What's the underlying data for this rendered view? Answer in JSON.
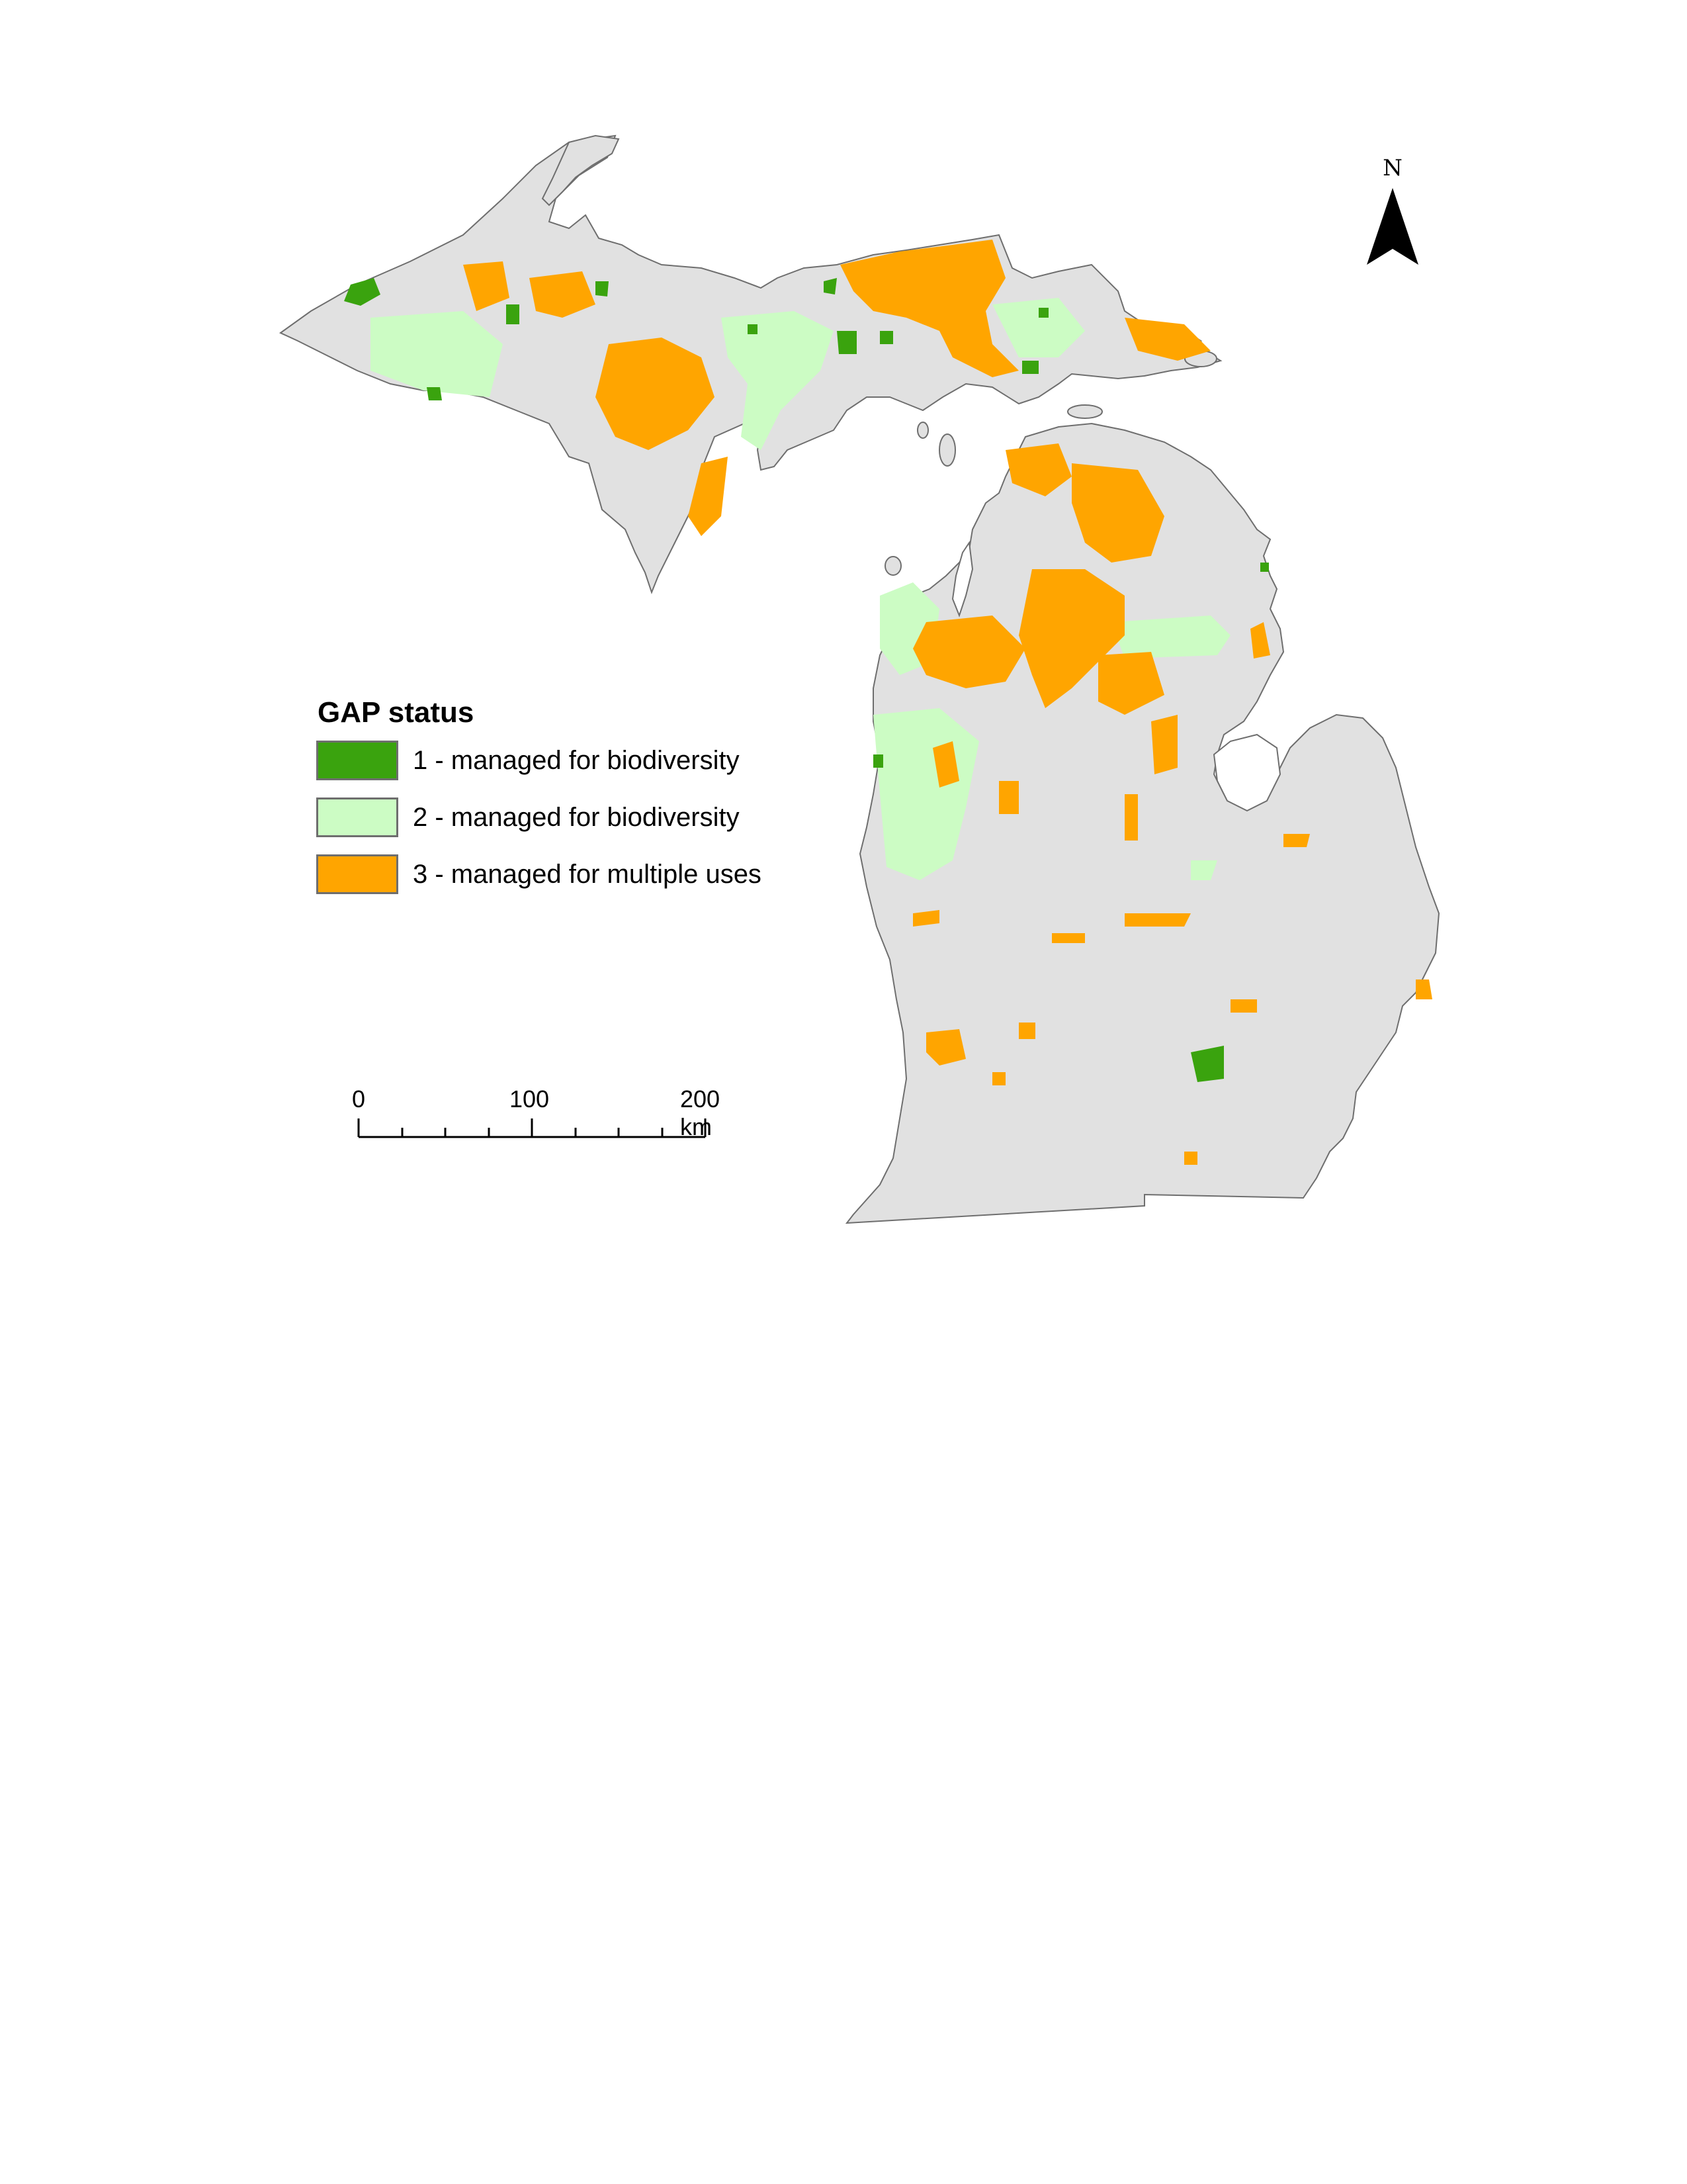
{
  "legend": {
    "title": "GAP status",
    "items": [
      {
        "label": "1 - managed for biodiversity",
        "color": "#3aa30e"
      },
      {
        "label": "2 - managed for biodiversity",
        "color": "#ccfcc4"
      },
      {
        "label": "3 - managed for multiple uses",
        "color": "#ffa500"
      }
    ]
  },
  "scale_bar": {
    "labels": [
      "0",
      "100",
      "200 km"
    ]
  },
  "north_arrow": {
    "label": "N"
  },
  "colors": {
    "land": "#e1e1e1",
    "outline": "#6e6e6e",
    "background": "#ffffff"
  }
}
